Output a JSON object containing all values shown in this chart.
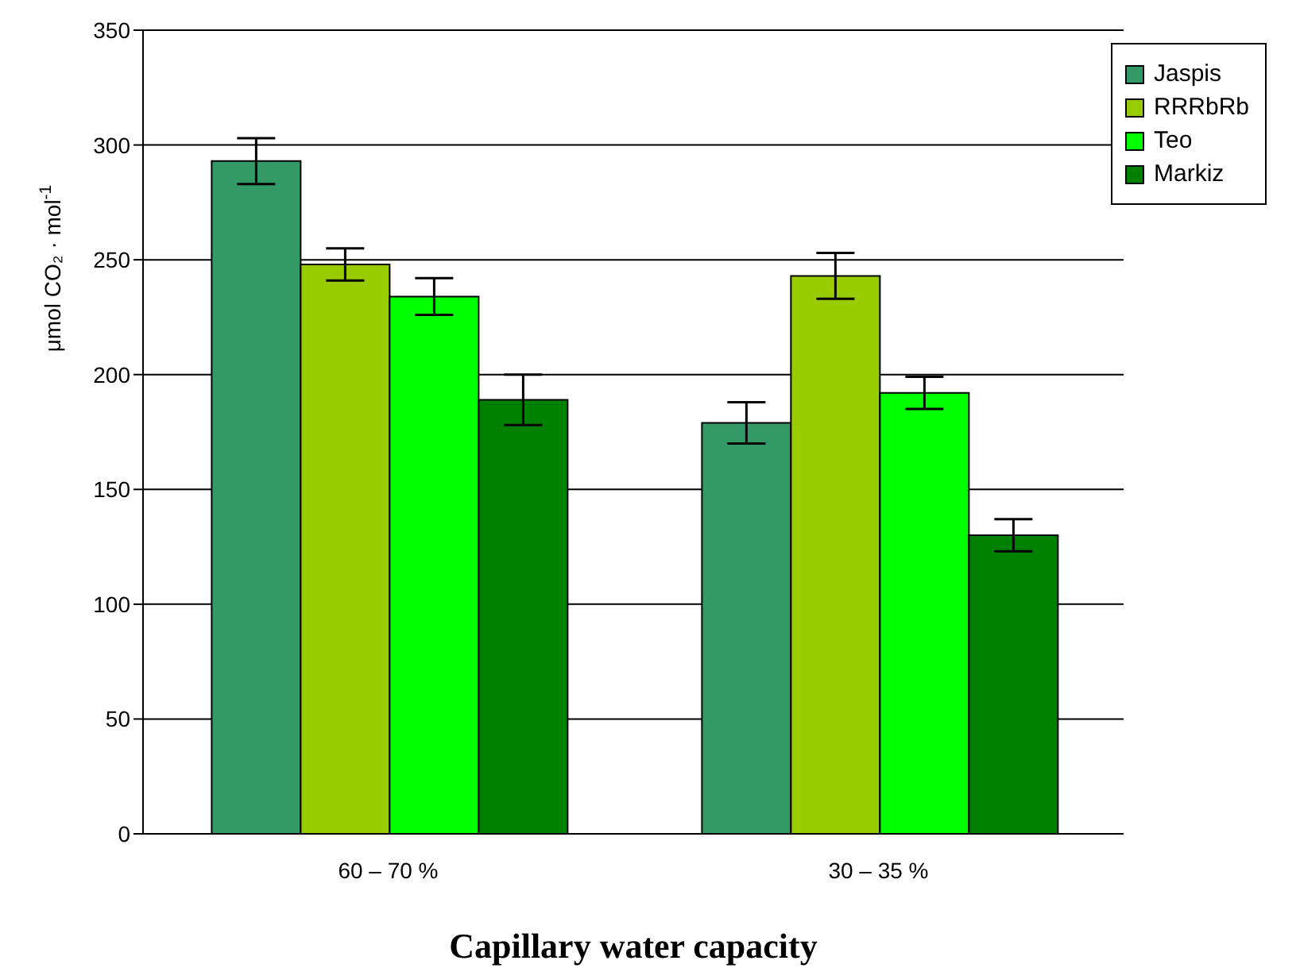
{
  "chart_data": {
    "type": "bar",
    "xlabel": "Capillary water capacity",
    "ylabel": "μmol CO₂ · mol$^{-1}$",
    "categories": [
      "60 – 70 %",
      "30 – 35 %"
    ],
    "series": [
      {
        "name": "Jaspis",
        "color": "#339966",
        "values": [
          293,
          179
        ],
        "errors": [
          10,
          9
        ]
      },
      {
        "name": "RRRbRb",
        "color": "#99cc00",
        "values": [
          248,
          243
        ],
        "errors": [
          7,
          10
        ]
      },
      {
        "name": "Teo",
        "color": "#00ff00",
        "values": [
          234,
          192
        ],
        "errors": [
          8,
          7
        ]
      },
      {
        "name": "Markiz",
        "color": "#008000",
        "values": [
          189,
          130
        ],
        "errors": [
          11,
          7
        ]
      }
    ],
    "ylim": [
      0,
      350
    ],
    "yticks": [
      0,
      50,
      100,
      150,
      200,
      250,
      300,
      350
    ],
    "grid": "y",
    "legend": "top right"
  }
}
